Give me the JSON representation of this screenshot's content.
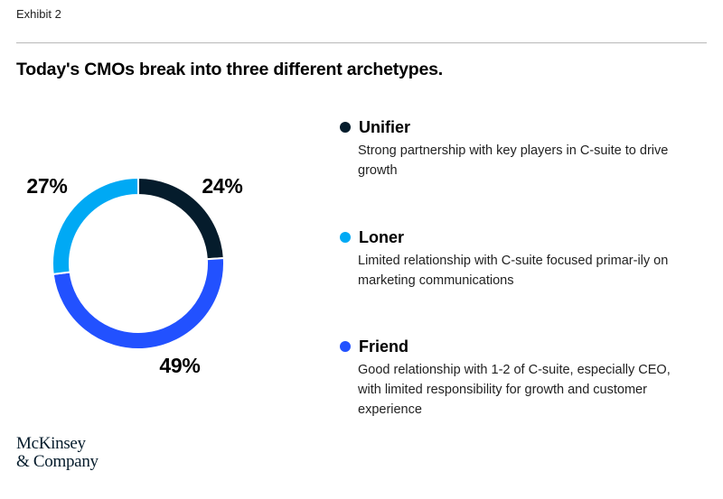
{
  "header": {
    "exhibit_label": "Exhibit 2",
    "title": "Today's CMOs break into three different archetypes."
  },
  "chart_data": {
    "type": "pie",
    "variant": "donut",
    "title": "Today's CMOs break into three different archetypes.",
    "categories": [
      "Unifier",
      "Friend",
      "Loner"
    ],
    "values": [
      24,
      49,
      27
    ],
    "labels": [
      "24%",
      "49%",
      "27%"
    ],
    "colors": [
      "#051c2c",
      "#2251ff",
      "#00a9f4"
    ],
    "start_angle_deg": 0,
    "direction": "clockwise"
  },
  "legend": [
    {
      "name": "Unifier",
      "color": "#051c2c",
      "description": "Strong partnership with key players in C-suite to drive growth"
    },
    {
      "name": "Loner",
      "color": "#00a9f4",
      "description": "Limited relationship with C-suite focused primar-ily on marketing communications"
    },
    {
      "name": "Friend",
      "color": "#2251ff",
      "description": "Good relationship with 1-2 of C-suite, especially CEO, with limited responsibility for growth and customer experience"
    }
  ],
  "footer": {
    "logo_line1": "McKinsey",
    "logo_line2": "& Company"
  }
}
